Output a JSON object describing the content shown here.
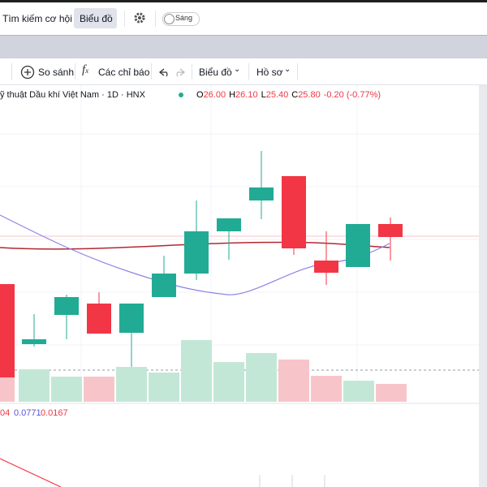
{
  "header": {
    "search": "Tìm kiếm cơ hội",
    "chart_tab": "Biểu đồ",
    "theme": "Sáng"
  },
  "toolbar": {
    "compare": "So sánh",
    "indicators": "Các chỉ báo",
    "chart": "Biểu đồ",
    "profile": "Hồ sơ"
  },
  "legend": {
    "symbol": "ỹ thuật Dầu khí Việt Nam · 1D · HNX",
    "ohlc": [
      {
        "label": "O",
        "value": "26.00"
      },
      {
        "label": "H",
        "value": "26.10"
      },
      {
        "label": "L",
        "value": "25.40"
      },
      {
        "label": "C",
        "value": "25.80"
      }
    ],
    "change": "-0.20 (-0.77%)"
  },
  "indicator": {
    "values": [
      "04",
      "0.0771",
      "0.0167"
    ]
  }
}
